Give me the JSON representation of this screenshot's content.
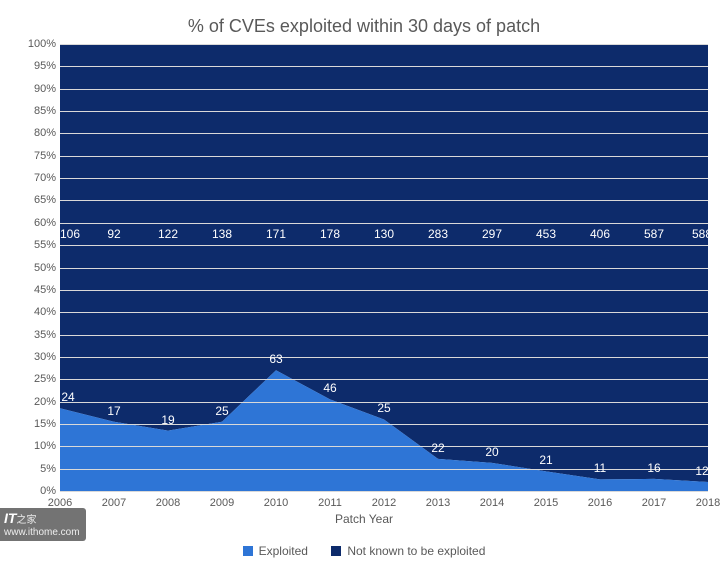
{
  "chart": {
    "type": "area",
    "title": "% of CVEs exploited within 30 days of patch",
    "title_fontsize": 18,
    "title_color": "#595959",
    "background_color": "#ffffff",
    "plot_background_color": "#f8f8f8",
    "grid_color": "#d9d9d9",
    "axis_label_color": "#595959",
    "axis_label_fontsize": 11,
    "axis_title_fontsize": 12,
    "xlabel": "Patch Year",
    "categories": [
      "2006",
      "2007",
      "2008",
      "2009",
      "2010",
      "2011",
      "2012",
      "2013",
      "2014",
      "2015",
      "2016",
      "2017",
      "2018"
    ],
    "ylim": [
      0,
      100
    ],
    "ytick_step": 5,
    "y_tick_format": "percent",
    "series": [
      {
        "name": "Exploited",
        "color": "#2e75d6",
        "data_label_color": "#ffffff",
        "data_label_fontsize": 12,
        "counts": [
          24,
          17,
          19,
          25,
          63,
          46,
          25,
          22,
          20,
          21,
          11,
          16,
          12
        ],
        "percent": [
          18.5,
          15.5,
          13.5,
          15.5,
          27,
          20.5,
          16,
          7.2,
          6.3,
          4.4,
          2.6,
          2.7,
          2.0
        ]
      },
      {
        "name": "Not known to be exploited",
        "color": "#0d2b6b",
        "data_label_color": "#ffffff",
        "data_label_fontsize": 12,
        "counts": [
          106,
          92,
          122,
          138,
          171,
          178,
          130,
          283,
          297,
          453,
          406,
          587,
          588
        ],
        "percent": [
          81.5,
          84.5,
          86.5,
          84.5,
          73,
          79.5,
          84,
          92.8,
          93.7,
          95.6,
          97.4,
          97.3,
          98.0
        ]
      }
    ],
    "legend": {
      "position": "bottom",
      "items": [
        "Exploited",
        "Not known to be exploited"
      ]
    }
  },
  "watermark": {
    "brand": "IT",
    "sub": "之家",
    "url": "www.ithome.com"
  }
}
